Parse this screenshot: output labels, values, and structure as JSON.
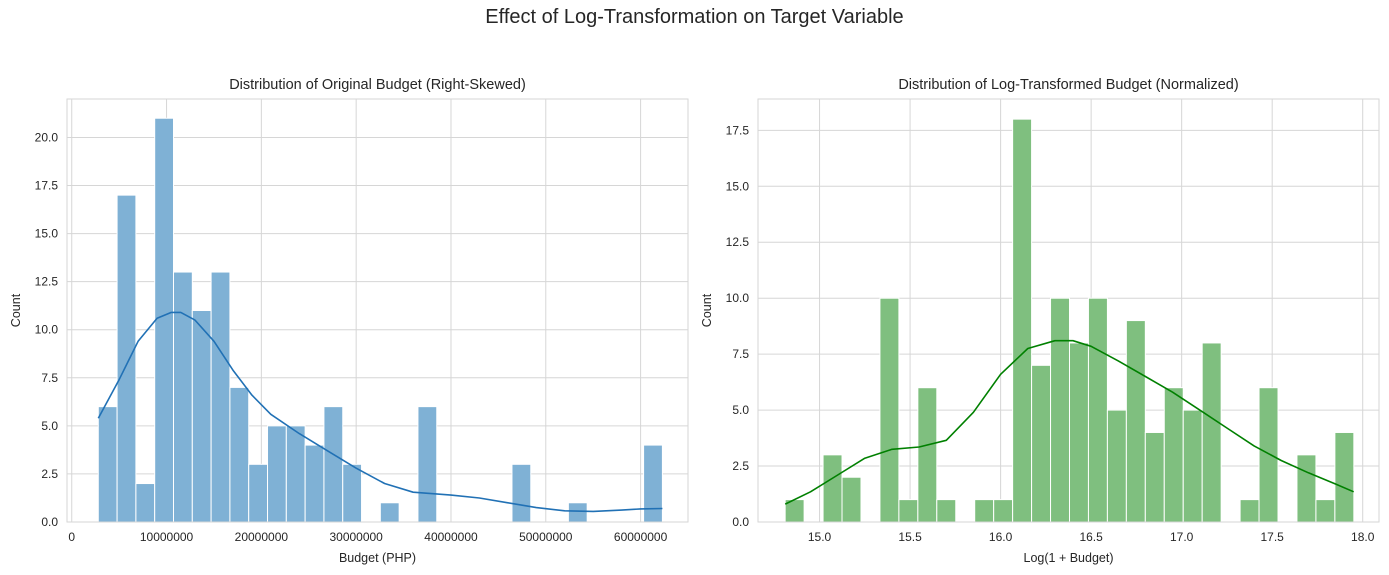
{
  "figure": {
    "title": "Effect of Log-Transformation on Target Variable"
  },
  "chart_data": [
    {
      "type": "bar",
      "subtype": "histogram_with_kde",
      "title": "Distribution of Original Budget (Right-Skewed)",
      "xlabel": "Budget (PHP)",
      "ylabel": "Count",
      "xlim": [
        -500000,
        65000000
      ],
      "ylim": [
        0,
        22
      ],
      "xticks": [
        0,
        10000000,
        20000000,
        30000000,
        40000000,
        50000000,
        60000000
      ],
      "xtick_labels": [
        "0",
        "10000000",
        "20000000",
        "30000000",
        "40000000",
        "50000000",
        "60000000"
      ],
      "yticks": [
        0,
        2.5,
        5,
        7.5,
        10,
        12.5,
        15,
        17.5,
        20
      ],
      "ytick_labels": [
        "0.0",
        "2.5",
        "5.0",
        "7.5",
        "10.0",
        "12.5",
        "15.0",
        "17.5",
        "20.0"
      ],
      "bin_start": 2800000,
      "bin_width": 1983333,
      "counts": [
        6,
        17,
        2,
        21,
        13,
        11,
        13,
        7,
        3,
        5,
        5,
        4,
        6,
        3,
        0,
        1,
        0,
        6,
        0,
        0,
        0,
        0,
        3,
        0,
        0,
        1,
        0,
        0,
        0,
        4
      ],
      "kde": {
        "x": [
          2800000,
          5000000,
          7000000,
          9000000,
          10500000,
          11500000,
          13000000,
          15000000,
          17000000,
          19000000,
          21000000,
          24000000,
          27000000,
          30000000,
          33000000,
          36000000,
          40000000,
          43000000,
          46000000,
          49000000,
          52000000,
          55000000,
          58000000,
          60000000,
          62300000
        ],
        "y": [
          5.4,
          7.4,
          9.4,
          10.6,
          10.9,
          10.9,
          10.5,
          9.4,
          7.9,
          6.6,
          5.6,
          4.6,
          3.7,
          2.8,
          2.0,
          1.55,
          1.4,
          1.25,
          1.0,
          0.75,
          0.58,
          0.55,
          0.62,
          0.68,
          0.7
        ]
      },
      "bar_color": "#7fb1d5",
      "line_color": "#2171b5",
      "grid": true
    },
    {
      "type": "bar",
      "subtype": "histogram_with_kde",
      "title": "Distribution of Log-Transformed Budget (Normalized)",
      "xlabel": "Log(1 + Budget)",
      "ylabel": "Count",
      "xlim": [
        14.66,
        18.09
      ],
      "ylim": [
        0,
        18.9
      ],
      "xticks": [
        15.0,
        15.5,
        16.0,
        16.5,
        17.0,
        17.5,
        18.0
      ],
      "xtick_labels": [
        "15.0",
        "15.5",
        "16.0",
        "16.5",
        "17.0",
        "17.5",
        "18.0"
      ],
      "yticks": [
        0,
        2.5,
        5,
        7.5,
        10,
        12.5,
        15,
        17.5
      ],
      "ytick_labels": [
        "0.0",
        "2.5",
        "5.0",
        "7.5",
        "10.0",
        "12.5",
        "15.0",
        "17.5"
      ],
      "bin_start": 14.81,
      "bin_width": 0.1047,
      "counts": [
        1,
        0,
        3,
        2,
        0,
        10,
        1,
        6,
        1,
        0,
        1,
        1,
        18,
        7,
        10,
        8,
        10,
        5,
        9,
        4,
        6,
        5,
        8,
        0,
        1,
        6,
        0,
        3,
        1,
        4
      ],
      "kde": {
        "x": [
          14.81,
          14.95,
          15.1,
          15.25,
          15.4,
          15.55,
          15.7,
          15.85,
          16.0,
          16.15,
          16.3,
          16.4,
          16.5,
          16.65,
          16.8,
          16.95,
          17.1,
          17.25,
          17.4,
          17.55,
          17.7,
          17.85,
          17.95
        ],
        "y": [
          0.8,
          1.35,
          2.1,
          2.85,
          3.25,
          3.35,
          3.65,
          4.9,
          6.6,
          7.75,
          8.1,
          8.1,
          7.85,
          7.2,
          6.5,
          5.8,
          5.0,
          4.2,
          3.4,
          2.75,
          2.2,
          1.7,
          1.35
        ]
      },
      "bar_color": "#7fbf7f",
      "line_color": "#008000",
      "grid": true
    }
  ]
}
